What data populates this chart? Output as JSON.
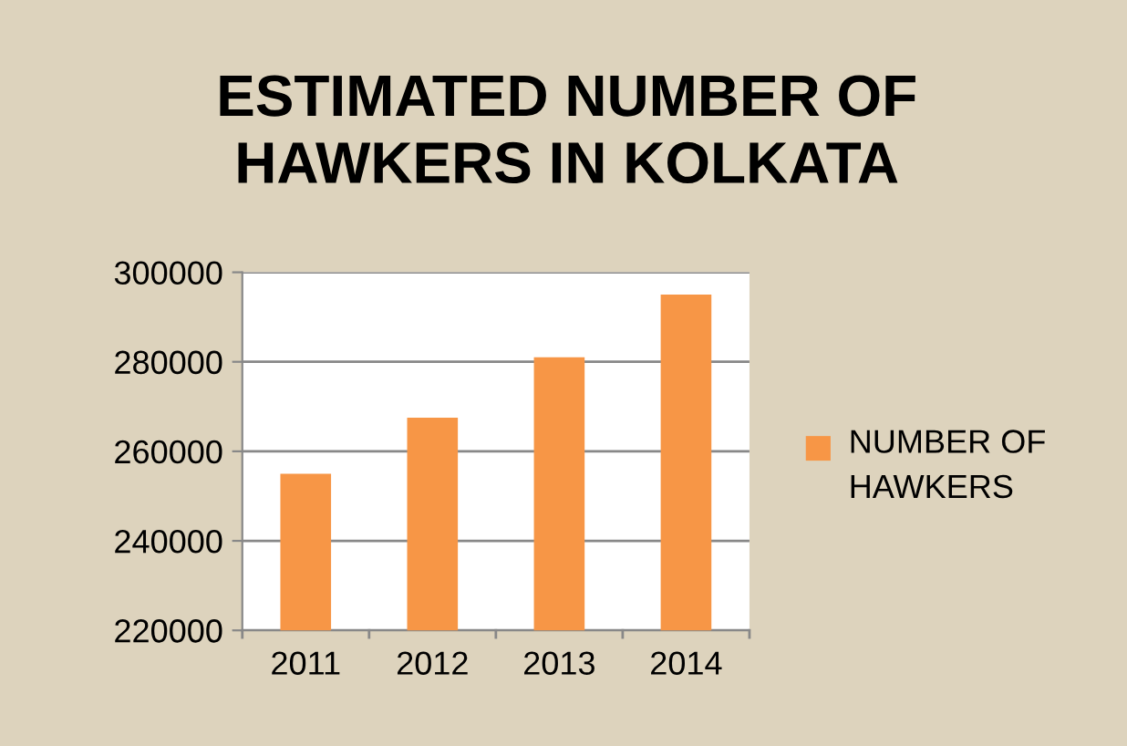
{
  "chart_data": {
    "type": "bar",
    "title": "ESTIMATED NUMBER OF HAWKERS IN KOLKATA",
    "categories": [
      "2011",
      "2012",
      "2013",
      "2014"
    ],
    "series": [
      {
        "name": "NUMBER OF HAWKERS",
        "color": "#f79646",
        "values": [
          255000,
          267500,
          281000,
          295000
        ]
      }
    ],
    "ylim": [
      220000,
      300000
    ],
    "yticks": [
      220000,
      240000,
      260000,
      280000,
      300000
    ],
    "grid": "y",
    "legend": "right"
  }
}
